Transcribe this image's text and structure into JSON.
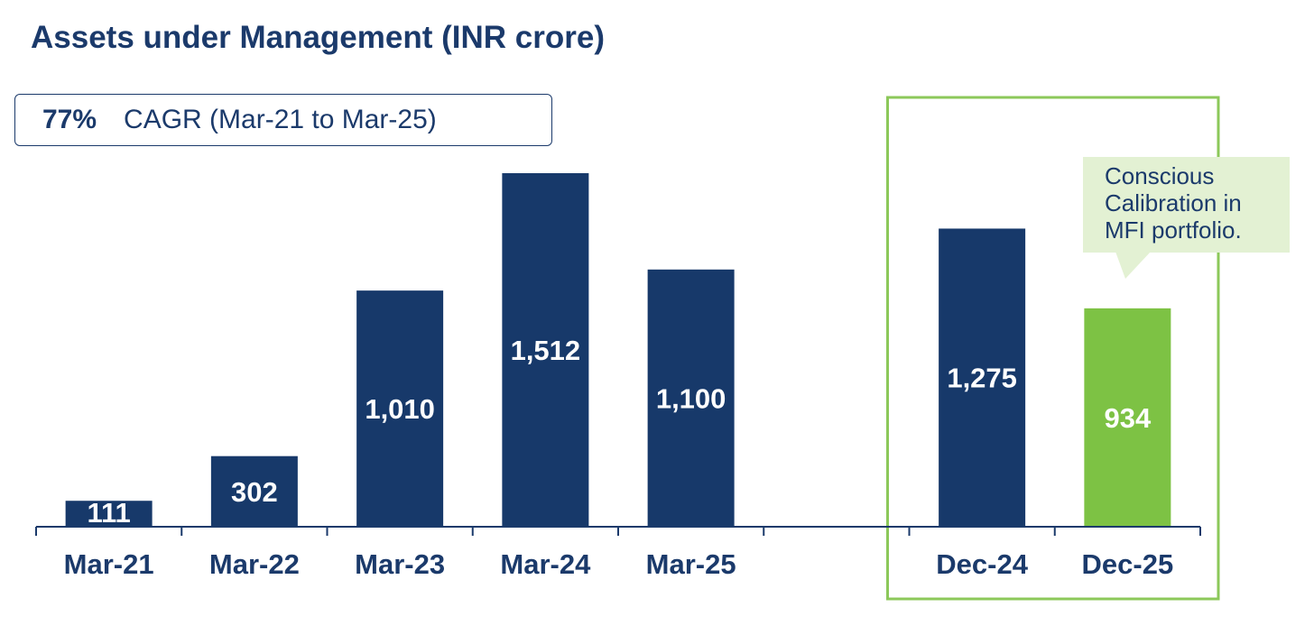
{
  "title": "Assets under Management (INR crore)",
  "cagr": {
    "value": "77%",
    "label": "CAGR (Mar-21 to Mar-25)"
  },
  "callout": {
    "lines": [
      "Conscious",
      "Calibration in",
      "MFI portfolio."
    ]
  },
  "colors": {
    "navy": "#17396a",
    "green": "#7dc244",
    "highlight_border": "#8cc85a",
    "axis": "#1b3a6b",
    "callout_bg": "#e3f1d3"
  },
  "chart_data": {
    "type": "bar",
    "title": "Assets under Management (INR crore)",
    "xlabel": "",
    "ylabel": "",
    "ylim": [
      0,
      1600
    ],
    "grid": false,
    "categories": [
      "Mar-21",
      "Mar-22",
      "Mar-23",
      "Mar-24",
      "Mar-25",
      "",
      "Dec-24",
      "Dec-25"
    ],
    "values": [
      111,
      302,
      1010,
      1512,
      1100,
      null,
      1275,
      934
    ],
    "value_labels": [
      "111",
      "302",
      "1,010",
      "1,512",
      "1,100",
      "",
      "1,275",
      "934"
    ],
    "bar_colors": [
      "navy",
      "navy",
      "navy",
      "navy",
      "navy",
      "",
      "navy",
      "green"
    ],
    "highlighted_categories": [
      "Dec-24",
      "Dec-25"
    ],
    "annotations": [
      "77% CAGR (Mar-21 to Mar-25)",
      "Conscious Calibration in MFI portfolio."
    ]
  }
}
